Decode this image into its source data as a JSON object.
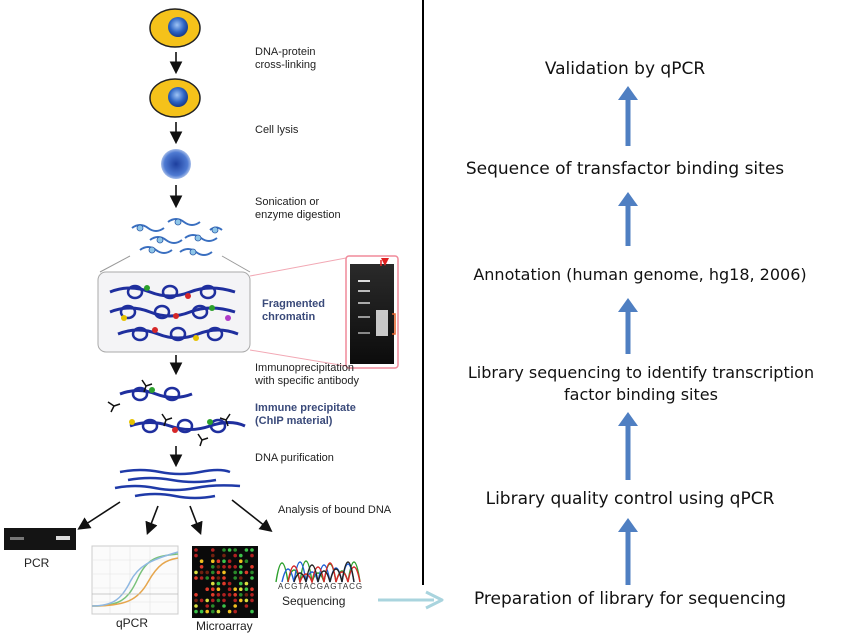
{
  "left_panel": {
    "steps": [
      {
        "lines": [
          "DNA-protein",
          "cross-linking"
        ]
      },
      {
        "lines": [
          "Cell lysis"
        ]
      },
      {
        "lines": [
          "Sonication or",
          "enzyme digestion"
        ]
      },
      {
        "lines": [
          "Fragmented",
          "chromatin"
        ]
      },
      {
        "lines": [
          "Immunoprecipitation",
          "with specific antibody"
        ]
      },
      {
        "lines": [
          "Immune precipitate",
          "(ChIP material)"
        ]
      },
      {
        "lines": [
          "DNA purification"
        ]
      },
      {
        "lines": [
          "Analysis of bound DNA"
        ]
      }
    ],
    "outputs": [
      "PCR",
      "qPCR",
      "Microarray",
      "Sequencing"
    ],
    "sequencing_bases": "ACGTACGAGTACG"
  },
  "right_panel": {
    "steps": [
      "Validation by qPCR",
      "Sequence of transfactor binding sites",
      "Annotation (human genome, hg18, 2006)",
      "Library sequencing to identify transcription factor binding sites",
      "Library quality control using qPCR",
      "Preparation of library for sequencing"
    ],
    "step_lines": [
      [
        "Validation by qPCR"
      ],
      [
        "Sequence of transfactor binding sites"
      ],
      [
        "Annotation (human genome, hg18, 2006)"
      ],
      [
        "Library sequencing to identify transcription",
        "factor binding sites"
      ],
      [
        "Library quality control using qPCR"
      ],
      [
        "Preparation of library for sequencing"
      ]
    ]
  },
  "colors": {
    "cell_fill": "#f5c21a",
    "nucleus": "#1e4fa3",
    "dna": "#1f2f9e",
    "flow_arrow": "#4f7fc2",
    "connector_arrow": "#a9d4de",
    "divider": "#000000"
  },
  "icons": [
    "cell-icon",
    "nucleus-icon",
    "chromatin-icon",
    "antibody-icon",
    "gel-icon",
    "microarray-icon",
    "chromatogram-icon",
    "arrow-up-icon",
    "arrow-down-icon",
    "arrow-right-icon"
  ]
}
